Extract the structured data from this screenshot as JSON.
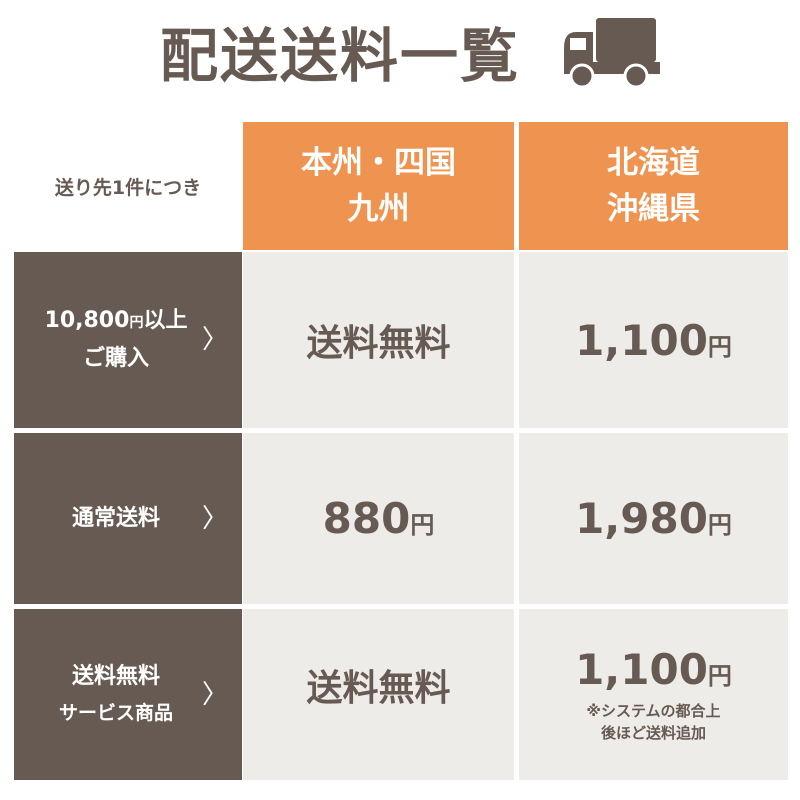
{
  "title": "配送送料一覧",
  "colors": {
    "brown": "#675a52",
    "orange": "#ef9450",
    "cell": "#eeece9"
  },
  "icons": {
    "title": "truck-icon",
    "row": "chevron-right-icon"
  },
  "table": {
    "corner": "送り先1件につき",
    "headers": [
      {
        "line1": "本州・四国",
        "line2": "九州"
      },
      {
        "line1": "北海道",
        "line2": "沖縄県"
      }
    ],
    "rows": [
      {
        "label": {
          "amount": "10,800",
          "unit": "円",
          "rest": "以上",
          "line2": "ご購入"
        },
        "col1": {
          "text": "送料無料"
        },
        "col2": {
          "amount": "1,100",
          "unit": "円"
        }
      },
      {
        "label": {
          "line1": "通常送料"
        },
        "col1": {
          "amount": "880",
          "unit": "円"
        },
        "col2": {
          "amount": "1,980",
          "unit": "円"
        }
      },
      {
        "label": {
          "line1": "送料無料",
          "line2": "サービス商品"
        },
        "col1": {
          "text": "送料無料"
        },
        "col2": {
          "amount": "1,100",
          "unit": "円",
          "note1": "※システムの都合上",
          "note2": "後ほど送料追加"
        }
      }
    ]
  }
}
